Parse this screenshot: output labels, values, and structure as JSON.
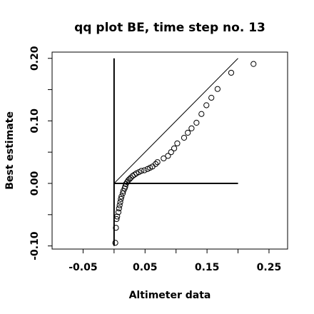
{
  "chart_data": {
    "type": "scatter",
    "title": "qq plot BE, time step no. 13",
    "xlabel": "Altimeter data",
    "ylabel": "Best estimate",
    "xlim": [
      -0.1,
      0.28
    ],
    "ylim": [
      -0.105,
      0.21
    ],
    "x_ticks": [
      -0.05,
      0.05,
      0.15,
      0.25
    ],
    "x_tick_labels": [
      "-0.05",
      "0.05",
      "0.15",
      "0.25"
    ],
    "y_ticks": [
      -0.1,
      0.0,
      0.1,
      0.2
    ],
    "y_tick_labels": [
      "-0.10",
      "0.00",
      "0.10",
      "0.20"
    ],
    "x_minor_ticks": [
      0.0,
      0.1,
      0.2
    ],
    "y_minor_ticks": [
      -0.05,
      0.05,
      0.15
    ],
    "grid": false,
    "marker": "open-circle",
    "reference_lines": [
      {
        "name": "identity",
        "x": [
          0.0,
          0.2
        ],
        "y": [
          0.0,
          0.2
        ],
        "style": "thin"
      },
      {
        "name": "vertical-axis",
        "x": [
          0.0,
          0.0
        ],
        "y": [
          -0.1,
          0.2
        ],
        "style": "bold"
      },
      {
        "name": "horizontal-axis",
        "x": [
          0.0,
          0.2
        ],
        "y": [
          0.0,
          0.0
        ],
        "style": "bold"
      }
    ],
    "points": [
      {
        "x": 0.002,
        "y": -0.095
      },
      {
        "x": 0.003,
        "y": -0.071
      },
      {
        "x": 0.004,
        "y": -0.057
      },
      {
        "x": 0.005,
        "y": -0.053
      },
      {
        "x": 0.007,
        "y": -0.046
      },
      {
        "x": 0.008,
        "y": -0.04
      },
      {
        "x": 0.009,
        "y": -0.035
      },
      {
        "x": 0.01,
        "y": -0.03
      },
      {
        "x": 0.011,
        "y": -0.025
      },
      {
        "x": 0.012,
        "y": -0.021
      },
      {
        "x": 0.014,
        "y": -0.016
      },
      {
        "x": 0.015,
        "y": -0.012
      },
      {
        "x": 0.017,
        "y": -0.008
      },
      {
        "x": 0.018,
        "y": -0.005
      },
      {
        "x": 0.019,
        "y": -0.001
      },
      {
        "x": 0.021,
        "y": 0.002
      },
      {
        "x": 0.023,
        "y": 0.005
      },
      {
        "x": 0.025,
        "y": 0.007
      },
      {
        "x": 0.027,
        "y": 0.009
      },
      {
        "x": 0.03,
        "y": 0.012
      },
      {
        "x": 0.033,
        "y": 0.014
      },
      {
        "x": 0.036,
        "y": 0.016
      },
      {
        "x": 0.04,
        "y": 0.018
      },
      {
        "x": 0.044,
        "y": 0.02
      },
      {
        "x": 0.049,
        "y": 0.021
      },
      {
        "x": 0.054,
        "y": 0.023
      },
      {
        "x": 0.058,
        "y": 0.025
      },
      {
        "x": 0.062,
        "y": 0.027
      },
      {
        "x": 0.067,
        "y": 0.031
      },
      {
        "x": 0.07,
        "y": 0.034
      },
      {
        "x": 0.08,
        "y": 0.04
      },
      {
        "x": 0.087,
        "y": 0.044
      },
      {
        "x": 0.092,
        "y": 0.05
      },
      {
        "x": 0.097,
        "y": 0.056
      },
      {
        "x": 0.102,
        "y": 0.064
      },
      {
        "x": 0.113,
        "y": 0.073
      },
      {
        "x": 0.119,
        "y": 0.081
      },
      {
        "x": 0.125,
        "y": 0.088
      },
      {
        "x": 0.133,
        "y": 0.097
      },
      {
        "x": 0.141,
        "y": 0.111
      },
      {
        "x": 0.149,
        "y": 0.125
      },
      {
        "x": 0.157,
        "y": 0.137
      },
      {
        "x": 0.167,
        "y": 0.151
      },
      {
        "x": 0.189,
        "y": 0.177
      },
      {
        "x": 0.225,
        "y": 0.191
      }
    ]
  }
}
